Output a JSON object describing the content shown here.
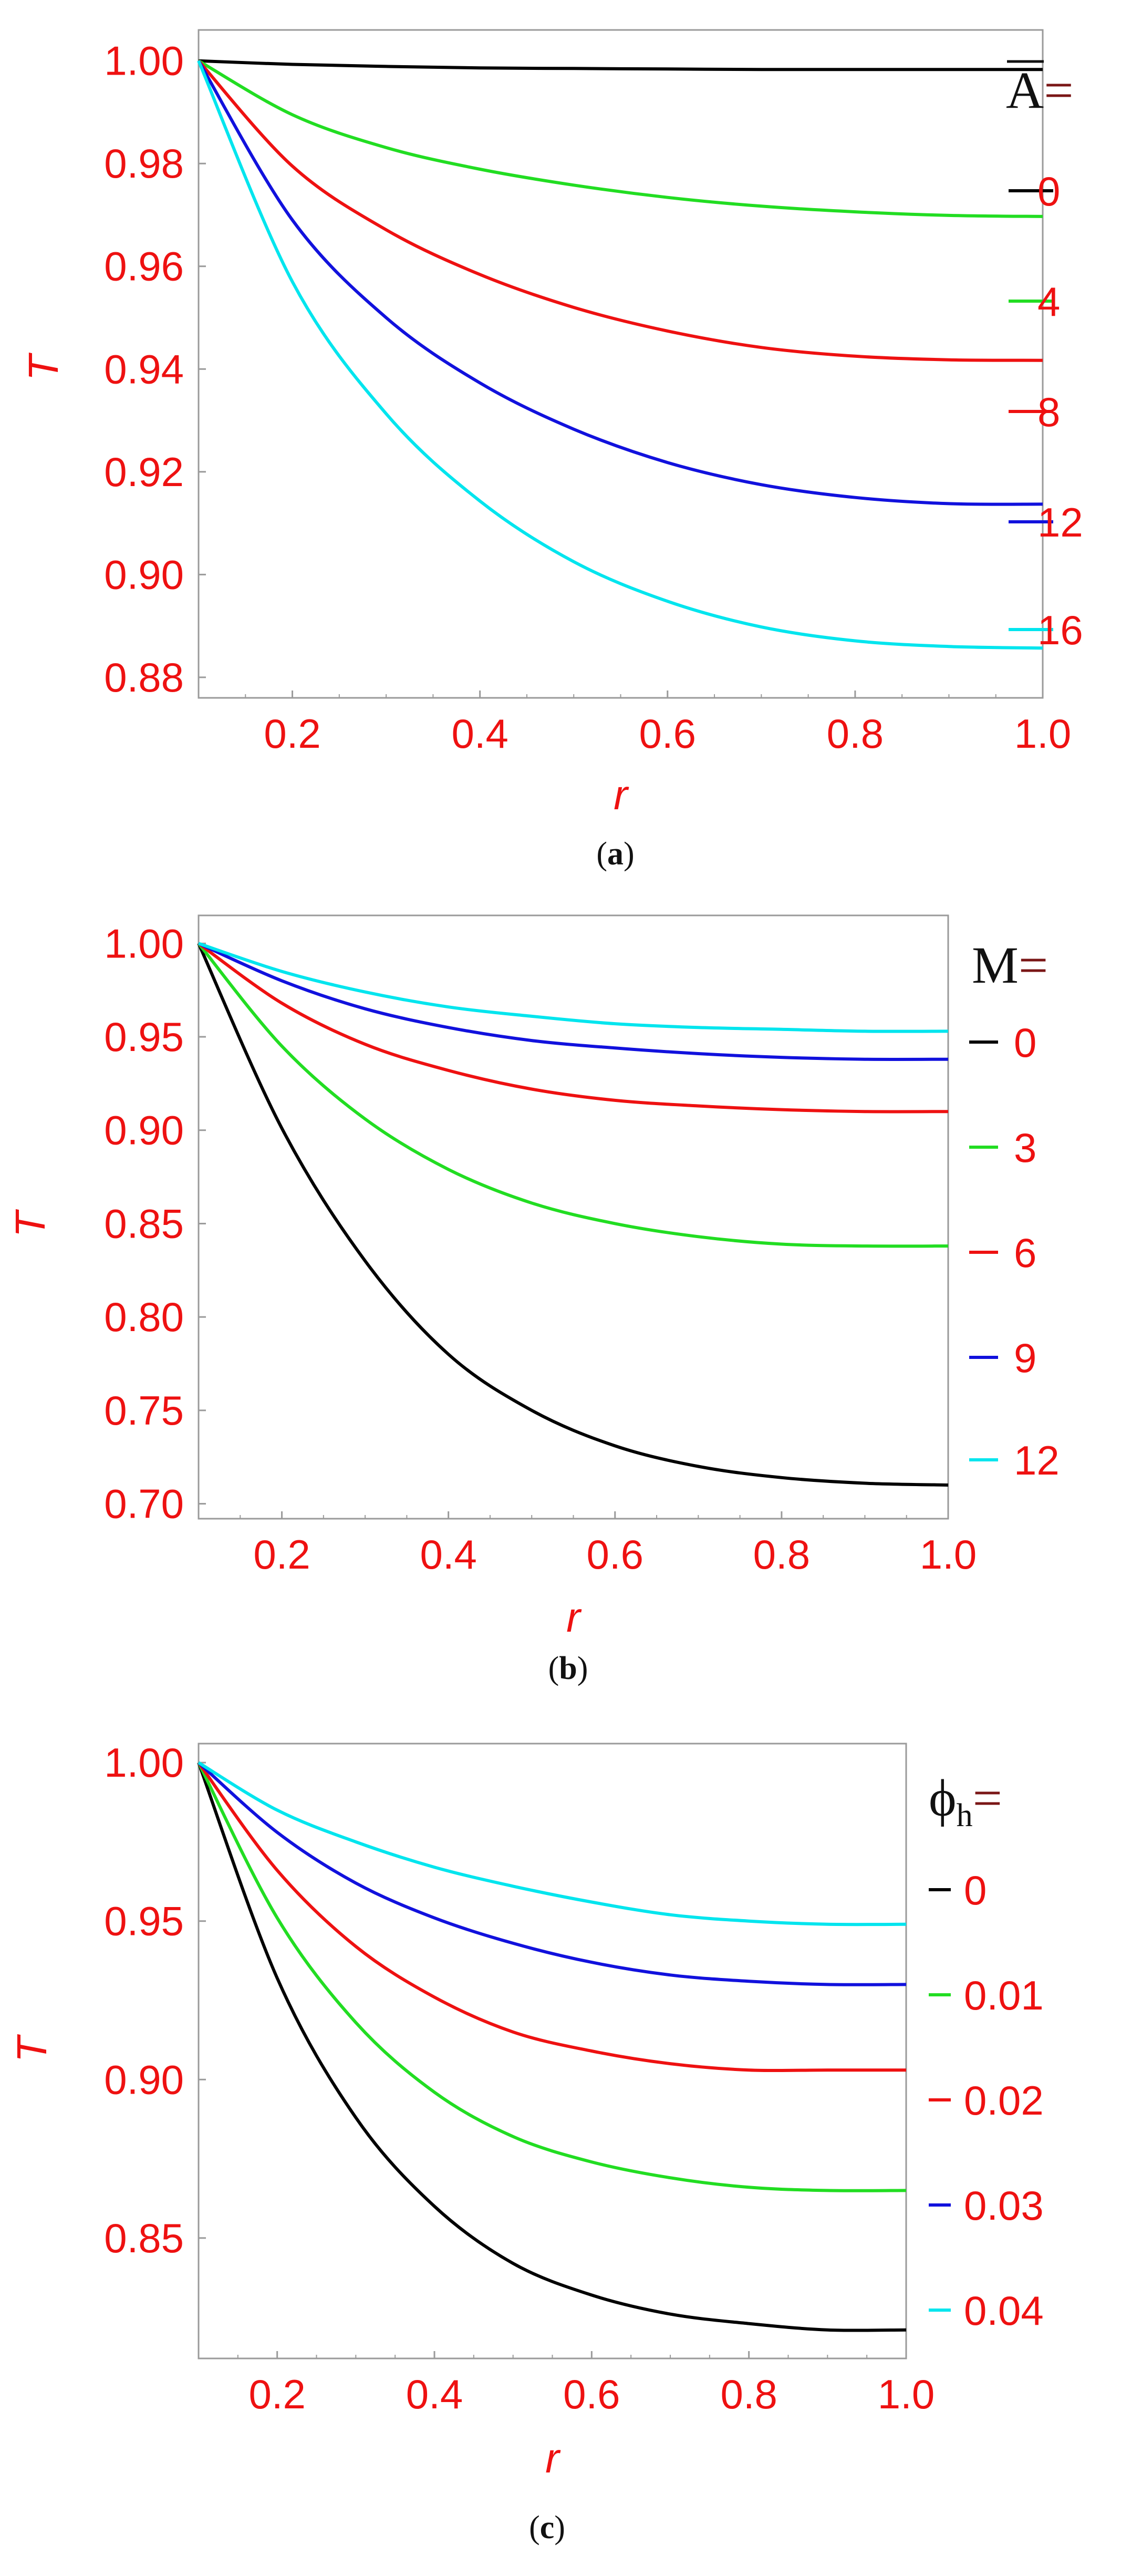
{
  "chart_data": [
    {
      "type": "line",
      "panel": "a",
      "caption_letter": "a",
      "xlabel": "r",
      "ylabel": "T",
      "xlim": [
        0.1,
        1.0
      ],
      "ylim": [
        0.876,
        1.006
      ],
      "xticks": [
        0.2,
        0.4,
        0.6,
        0.8,
        1.0
      ],
      "xtick_labels": [
        "0.2",
        "0.4",
        "0.6",
        "0.8",
        "1.0"
      ],
      "yticks": [
        0.88,
        0.9,
        0.92,
        0.94,
        0.96,
        0.98,
        1.0
      ],
      "ytick_labels": [
        "0.88",
        "0.90",
        "0.92",
        "0.94",
        "0.96",
        "0.98",
        "1.00"
      ],
      "legend_title": "A",
      "legend_title_overbar": true,
      "legend_title_suffix": "=",
      "legend_placement": "right",
      "grid": false,
      "x": [
        0.1,
        0.2,
        0.3,
        0.4,
        0.5,
        0.6,
        0.7,
        0.8,
        0.9,
        1.0
      ],
      "series": [
        {
          "name": "0",
          "color": "#000000",
          "values": [
            1.0,
            0.9993,
            0.9989,
            0.9986,
            0.9985,
            0.9984,
            0.9983,
            0.9983,
            0.9983,
            0.9983
          ]
        },
        {
          "name": "4",
          "color": "#22dd22",
          "values": [
            1.0,
            0.9895,
            0.9831,
            0.9789,
            0.9758,
            0.9734,
            0.9717,
            0.9706,
            0.9699,
            0.9697
          ]
        },
        {
          "name": "8",
          "color": "#ee1111",
          "values": [
            1.0,
            0.9795,
            0.9671,
            0.9584,
            0.952,
            0.9474,
            0.9442,
            0.9425,
            0.9418,
            0.9417
          ]
        },
        {
          "name": "12",
          "color": "#1111dd",
          "values": [
            1.0,
            0.969,
            0.95,
            0.9373,
            0.9283,
            0.9218,
            0.9175,
            0.915,
            0.9138,
            0.9137
          ]
        },
        {
          "name": "16",
          "color": "#00e5ee",
          "values": [
            1.0,
            0.957,
            0.9313,
            0.9143,
            0.9025,
            0.8948,
            0.8898,
            0.8871,
            0.886,
            0.8857
          ]
        }
      ]
    },
    {
      "type": "line",
      "panel": "b",
      "caption_letter": "b",
      "xlabel": "r",
      "ylabel": "T",
      "xlim": [
        0.1,
        1.0
      ],
      "ylim": [
        0.692,
        1.015
      ],
      "xticks": [
        0.2,
        0.4,
        0.6,
        0.8,
        1.0
      ],
      "xtick_labels": [
        "0.2",
        "0.4",
        "0.6",
        "0.8",
        "1.0"
      ],
      "yticks": [
        0.7,
        0.75,
        0.8,
        0.85,
        0.9,
        0.95,
        1.0
      ],
      "ytick_labels": [
        "0.70",
        "0.75",
        "0.80",
        "0.85",
        "0.90",
        "0.95",
        "1.00"
      ],
      "legend_title": "M",
      "legend_title_overbar": false,
      "legend_title_suffix": "=",
      "legend_placement": "right",
      "grid": false,
      "x": [
        0.1,
        0.2,
        0.3,
        0.4,
        0.5,
        0.6,
        0.7,
        0.8,
        0.9,
        1.0
      ],
      "series": [
        {
          "name": "0",
          "color": "#000000",
          "values": [
            1.0,
            0.901,
            0.83,
            0.78,
            0.75,
            0.731,
            0.72,
            0.714,
            0.711,
            0.71
          ]
        },
        {
          "name": "3",
          "color": "#22dd22",
          "values": [
            1.0,
            0.945,
            0.906,
            0.879,
            0.861,
            0.85,
            0.843,
            0.839,
            0.838,
            0.838
          ]
        },
        {
          "name": "6",
          "color": "#ee1111",
          "values": [
            1.0,
            0.968,
            0.946,
            0.932,
            0.922,
            0.916,
            0.913,
            0.911,
            0.91,
            0.91
          ]
        },
        {
          "name": "9",
          "color": "#1111dd",
          "values": [
            1.0,
            0.98,
            0.965,
            0.955,
            0.948,
            0.944,
            0.941,
            0.939,
            0.938,
            0.938
          ]
        },
        {
          "name": "12",
          "color": "#00e5ee",
          "values": [
            1.0,
            0.985,
            0.974,
            0.966,
            0.961,
            0.957,
            0.955,
            0.954,
            0.953,
            0.953
          ]
        }
      ]
    },
    {
      "type": "line",
      "panel": "c",
      "caption_letter": "c",
      "xlabel": "r",
      "ylabel": "T",
      "xlim": [
        0.1,
        1.0
      ],
      "ylim": [
        0.812,
        1.006
      ],
      "xticks": [
        0.2,
        0.4,
        0.6,
        0.8,
        1.0
      ],
      "xtick_labels": [
        "0.2",
        "0.4",
        "0.6",
        "0.8",
        "1.0"
      ],
      "yticks": [
        0.85,
        0.9,
        0.95,
        1.0
      ],
      "ytick_labels": [
        "0.85",
        "0.90",
        "0.95",
        "1.00"
      ],
      "legend_title": "ϕ",
      "legend_title_sub": "h",
      "legend_title_overbar": false,
      "legend_title_suffix": "=",
      "legend_placement": "right",
      "grid": false,
      "x": [
        0.1,
        0.2,
        0.3,
        0.4,
        0.5,
        0.6,
        0.7,
        0.8,
        0.9,
        1.0
      ],
      "series": [
        {
          "name": "0",
          "color": "#000000",
          "values": [
            1.0,
            0.932,
            0.888,
            0.86,
            0.842,
            0.832,
            0.826,
            0.823,
            0.821,
            0.821
          ]
        },
        {
          "name": "0.01",
          "color": "#22dd22",
          "values": [
            1.0,
            0.951,
            0.918,
            0.896,
            0.882,
            0.874,
            0.869,
            0.866,
            0.865,
            0.865
          ]
        },
        {
          "name": "0.02",
          "color": "#ee1111",
          "values": [
            1.0,
            0.966,
            0.942,
            0.926,
            0.915,
            0.909,
            0.905,
            0.903,
            0.903,
            0.903
          ]
        },
        {
          "name": "0.03",
          "color": "#1111dd",
          "values": [
            1.0,
            0.978,
            0.962,
            0.951,
            0.943,
            0.937,
            0.933,
            0.931,
            0.93,
            0.93
          ]
        },
        {
          "name": "0.04",
          "color": "#00e5ee",
          "values": [
            1.0,
            0.985,
            0.975,
            0.967,
            0.961,
            0.956,
            0.952,
            0.95,
            0.949,
            0.949
          ]
        }
      ]
    }
  ]
}
